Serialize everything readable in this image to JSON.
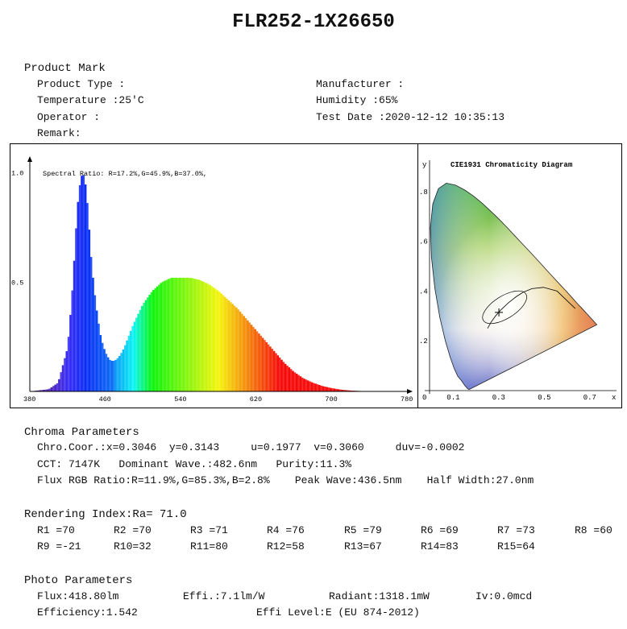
{
  "title": "FLR252-1X26650",
  "product": {
    "heading": "Product Mark",
    "rows": [
      {
        "left": "Product Type :",
        "right": "Manufacturer :"
      },
      {
        "left": "Temperature :25'C",
        "right": "Humidity :65%"
      },
      {
        "left": "Operator :",
        "right": "Test Date :2020-12-12 10:35:13"
      },
      {
        "left": "Remark:",
        "right": ""
      }
    ]
  },
  "chart_data": [
    {
      "type": "area",
      "annotation": "Spectral Ratio:  R=17.2%,G=45.9%,B=37.0%,",
      "x_ticks": [
        "380",
        "460",
        "540",
        "620",
        "700",
        "780"
      ],
      "y_ticks": [
        "1.0",
        "0.5"
      ],
      "xlim": [
        380,
        780
      ],
      "ylim": [
        0,
        1.05
      ],
      "series": [
        {
          "x": [
            380,
            400,
            410,
            420,
            425,
            430,
            433,
            436,
            438,
            441,
            445,
            450,
            455,
            460,
            465,
            470,
            475,
            480,
            490,
            500,
            510,
            520,
            530,
            540,
            550,
            560,
            570,
            580,
            590,
            600,
            610,
            620,
            630,
            640,
            650,
            660,
            670,
            680,
            690,
            700,
            710,
            720,
            730,
            740,
            750,
            760,
            770,
            780
          ],
          "values": [
            0.0,
            0.01,
            0.04,
            0.2,
            0.45,
            0.82,
            0.96,
            1.0,
            0.98,
            0.88,
            0.6,
            0.4,
            0.25,
            0.18,
            0.14,
            0.14,
            0.16,
            0.2,
            0.31,
            0.4,
            0.46,
            0.5,
            0.52,
            0.52,
            0.52,
            0.51,
            0.49,
            0.46,
            0.42,
            0.38,
            0.33,
            0.28,
            0.23,
            0.18,
            0.13,
            0.09,
            0.06,
            0.04,
            0.025,
            0.015,
            0.008,
            0.004,
            0.002,
            0.001,
            0.0,
            0.0,
            0.0,
            0.0
          ]
        }
      ]
    },
    {
      "type": "scatter",
      "title": "CIE1931 Chromaticity Diagram",
      "xlabel": "x",
      "ylabel": "y",
      "x_ticks": [
        "0",
        "0.1",
        "0.3",
        "0.5",
        "0.7"
      ],
      "y_ticks": [
        ".8",
        ".6",
        ".4",
        ".2"
      ],
      "xlim": [
        0,
        0.8
      ],
      "ylim": [
        0,
        0.9
      ],
      "point": {
        "x": 0.3046,
        "y": 0.3143
      }
    }
  ],
  "chroma": {
    "heading": "Chroma Parameters",
    "line1": "Chro.Coor.:x=0.3046  y=0.3143     u=0.1977  v=0.3060     duv=-0.0002",
    "line2": "CCT: 7147K   Dominant Wave.:482.6nm   Purity:11.3%",
    "line3": "Flux RGB Ratio:R=11.9%,G=85.3%,B=2.8%    Peak Wave:436.5nm    Half Width:27.0nm"
  },
  "rendering": {
    "heading": "Rendering Index:Ra= 71.0",
    "row1": [
      "R1 =70",
      "R2 =70",
      "R3 =71",
      "R4 =76",
      "R5 =79",
      "R6 =69",
      "R7 =73",
      "R8 =60"
    ],
    "row2": [
      "R9 =-21",
      "R10=32",
      "R11=80",
      "R12=58",
      "R13=67",
      "R14=83",
      "R15=64"
    ]
  },
  "photo": {
    "heading": "Photo Parameters",
    "flux": "Flux:418.80lm",
    "effi": "Effi.:7.1lm/W",
    "radiant": "Radiant:1318.1mW",
    "iv": "Iv:0.0mcd",
    "efficiency": "Efficiency:1.542",
    "effi_level": "Effi Level:E (EU 874-2012)"
  }
}
